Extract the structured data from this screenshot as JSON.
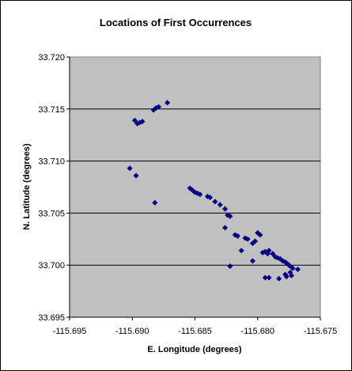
{
  "chart_data": {
    "type": "scatter",
    "title": "Locations of First Occurrences",
    "xlabel": "E. Longitude (degrees)",
    "ylabel": "N. Latitude (degrees)",
    "xlim": [
      -115.695,
      -115.675
    ],
    "ylim": [
      33.695,
      33.72
    ],
    "x_ticks": [
      "-115.695",
      "-115.690",
      "-115.685",
      "-115.680",
      "-115.675"
    ],
    "y_ticks": [
      "33.720",
      "33.715",
      "33.710",
      "33.705",
      "33.700",
      "33.695"
    ],
    "grid": "horizontal",
    "legend": "none",
    "colors": {
      "plot_background": "#c0c0c0",
      "marker": "#000080",
      "gridline": "#000000"
    },
    "series": [
      {
        "x": [
          -115.6898,
          -115.6896,
          -115.6894,
          -115.6892,
          -115.6883,
          -115.6881,
          -115.6879,
          -115.6872,
          -115.6902,
          -115.6897,
          -115.6882,
          -115.6854,
          -115.6852,
          -115.685,
          -115.6848,
          -115.6846,
          -115.684,
          -115.6838,
          -115.6834,
          -115.683,
          -115.6826,
          -115.6824,
          -115.6822,
          -115.6826,
          -115.6818,
          -115.6816,
          -115.681,
          -115.6808,
          -115.6804,
          -115.6802,
          -115.68,
          -115.6798,
          -115.6796,
          -115.6794,
          -115.6792,
          -115.6791,
          -115.6788,
          -115.6786,
          -115.6784,
          -115.6782,
          -115.678,
          -115.6778,
          -115.6776,
          -115.6775,
          -115.6774,
          -115.6772,
          -115.6774,
          -115.6773,
          -115.6777,
          -115.6768,
          -115.6783,
          -115.6791,
          -115.6822,
          -115.6813,
          -115.6804,
          -115.6794,
          -115.6778
        ],
        "y": [
          33.7139,
          33.7136,
          33.7137,
          33.7138,
          33.7149,
          33.7151,
          33.7152,
          33.7156,
          33.7093,
          33.7086,
          33.706,
          33.7074,
          33.7072,
          33.707,
          33.7069,
          33.7068,
          33.7066,
          33.7065,
          33.7061,
          33.7058,
          33.7054,
          33.7048,
          33.7047,
          33.7036,
          33.7029,
          33.7028,
          33.7026,
          33.7025,
          33.7021,
          33.7023,
          33.7031,
          33.7029,
          33.7012,
          33.7013,
          33.7011,
          33.7014,
          33.7011,
          33.7008,
          33.7007,
          33.7006,
          33.7004,
          33.7003,
          33.7001,
          33.7,
          33.6999,
          33.6997,
          33.6993,
          33.699,
          33.6989,
          33.6996,
          33.6987,
          33.6988,
          33.6999,
          33.7014,
          33.7004,
          33.6988,
          33.6991
        ]
      }
    ]
  }
}
